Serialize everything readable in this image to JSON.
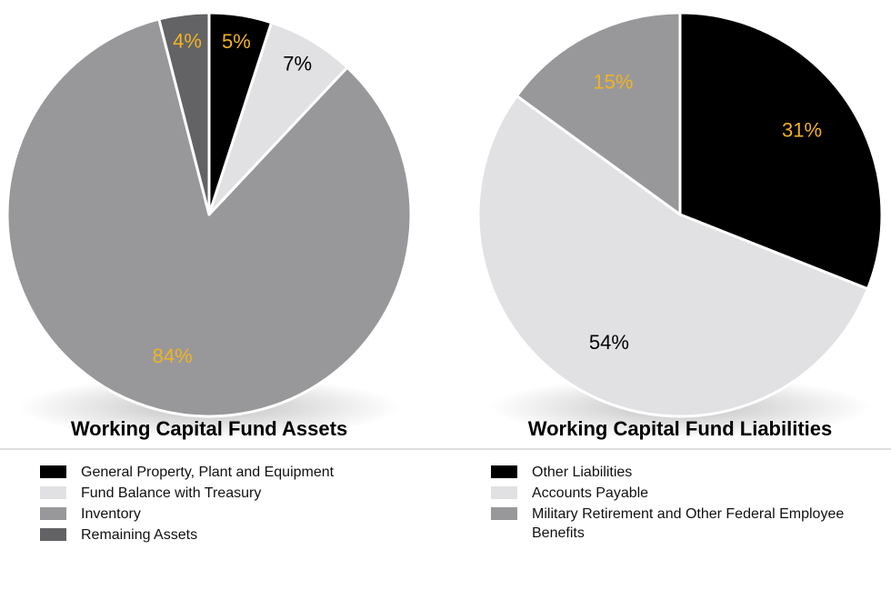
{
  "chart_data": [
    {
      "type": "pie",
      "title": "Working Capital Fund Assets",
      "categories": [
        "General Property, Plant and Equipment",
        "Fund Balance with Treasury",
        "Inventory",
        "Remaining Assets"
      ],
      "values": [
        5,
        7,
        84,
        4
      ],
      "value_labels": [
        "5%",
        "7%",
        "84%",
        "4%"
      ],
      "colors": [
        "#000000",
        "#e1e1e3",
        "#98989b",
        "#636366"
      ],
      "label_colors": [
        "#f0b323",
        "#000000",
        "#f0b323",
        "#f0b323"
      ]
    },
    {
      "type": "pie",
      "title": "Working Capital Fund Liabilities",
      "categories": [
        "Other Liabilities",
        "Accounts Payable",
        "Military Retirement and Other Federal Employee Benefits"
      ],
      "values": [
        31,
        54,
        15
      ],
      "value_labels": [
        "31%",
        "54%",
        "15%"
      ],
      "colors": [
        "#000000",
        "#e1e1e3",
        "#98989b"
      ],
      "label_colors": [
        "#f0b323",
        "#000000",
        "#f0b323"
      ]
    }
  ]
}
